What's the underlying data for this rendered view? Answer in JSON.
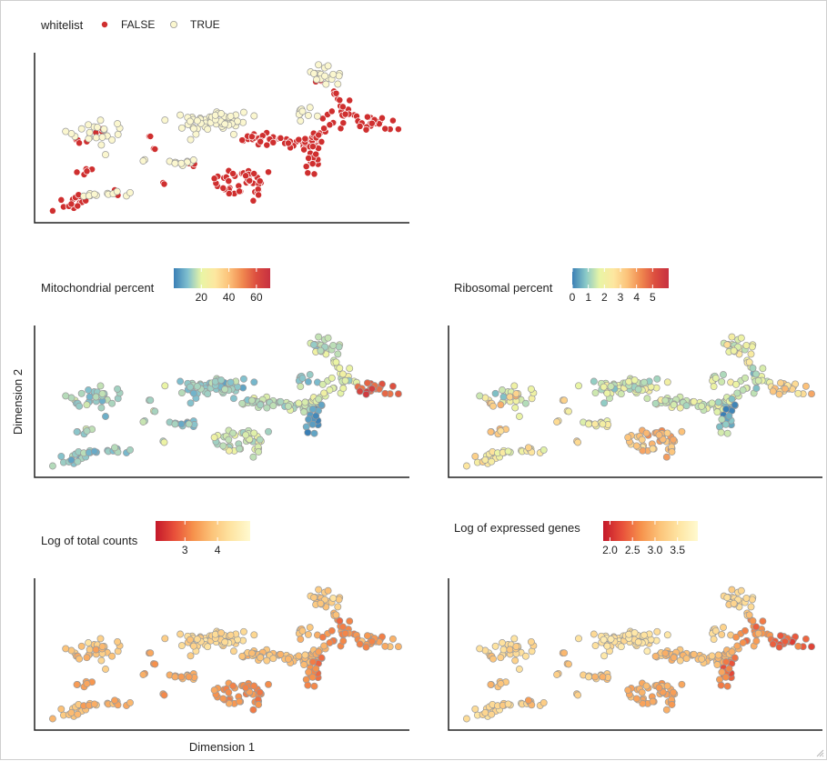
{
  "chart_data": [
    {
      "type": "scatter",
      "legend": {
        "title": "whitelist",
        "type": "categorical",
        "placement": "top-left",
        "entries": [
          {
            "label": "FALSE",
            "color": "#cf2f2f"
          },
          {
            "label": "TRUE",
            "color": "#fbf7cf"
          }
        ]
      },
      "xlabel": "",
      "ylabel": "",
      "grid": false
    },
    {
      "type": "scatter",
      "legend": {
        "title": "Mitochondrial percent",
        "type": "continuous",
        "placement": "top-left",
        "ticks": [
          "20",
          "40",
          "60"
        ],
        "domain": [
          0,
          70
        ],
        "tick_values": [
          20,
          40,
          60
        ]
      },
      "xlabel": "",
      "ylabel": "Dimension 2",
      "grid": false
    },
    {
      "type": "scatter",
      "legend": {
        "title": "Ribosomal percent",
        "type": "continuous",
        "placement": "top-left",
        "ticks": [
          "0",
          "1",
          "2",
          "3",
          "4",
          "5"
        ],
        "domain": [
          0,
          6
        ],
        "tick_values": [
          0,
          1,
          2,
          3,
          4,
          5
        ]
      },
      "xlabel": "",
      "ylabel": "",
      "grid": false
    },
    {
      "type": "scatter",
      "legend": {
        "title": "Log of total counts",
        "type": "continuous",
        "placement": "top-left",
        "ticks": [
          "3",
          "4"
        ],
        "domain": [
          2.1,
          5.0
        ],
        "tick_values": [
          3,
          4
        ]
      },
      "xlabel": "Dimension 1",
      "ylabel": "",
      "grid": false
    },
    {
      "type": "scatter",
      "legend": {
        "title": "Log of expressed genes",
        "type": "continuous",
        "placement": "top-left",
        "ticks": [
          "2.0",
          "2.5",
          "3.0",
          "3.5"
        ],
        "domain": [
          1.85,
          3.95
        ],
        "tick_values": [
          2.0,
          2.5,
          3.0,
          3.5
        ]
      },
      "xlabel": "",
      "ylabel": "",
      "grid": false
    }
  ],
  "colors": {
    "false_point": "#cf2f2f",
    "true_point": "#fbf7cf",
    "point_outline": "#9a9a9a",
    "mito_scale": [
      "#3a7fb5",
      "#7fbfcf",
      "#e9f5a5",
      "#fde7a0",
      "#fcc27a",
      "#f0884f",
      "#dc4d3f",
      "#c73040"
    ],
    "ribo_scale": [
      "#3a7fb5",
      "#8ac9c8",
      "#e9f5a5",
      "#fde7a0",
      "#fcc27a",
      "#f0884f",
      "#dc4d3f",
      "#c73040"
    ],
    "counts_scale": [
      "#c4182a",
      "#e8503a",
      "#f6924c",
      "#fcc47a",
      "#fee5a3",
      "#fffad0"
    ],
    "genes_scale": [
      "#c4182a",
      "#e8503a",
      "#f6924c",
      "#fcc47a",
      "#fee5a3",
      "#fffad0"
    ]
  }
}
